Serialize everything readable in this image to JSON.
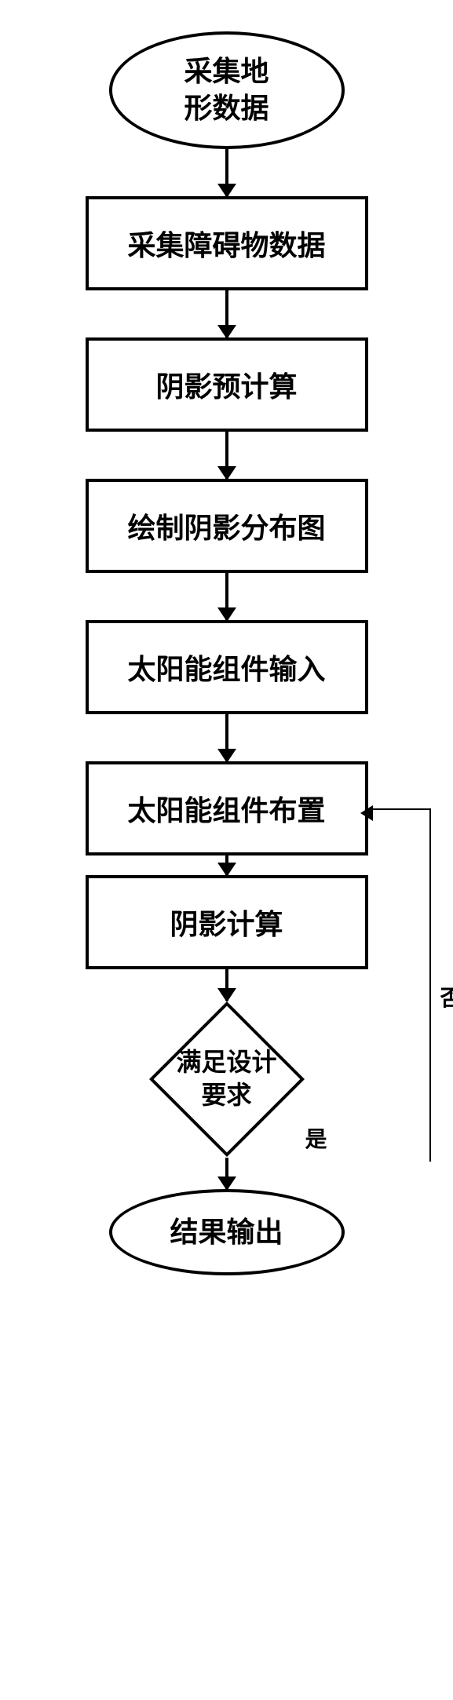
{
  "flowchart": {
    "type": "flowchart",
    "background_color": "#ffffff",
    "border_color": "#000000",
    "border_width": 4,
    "font_weight": "bold",
    "nodes": {
      "start": {
        "shape": "ellipse",
        "label": "采集地\n形数据",
        "fontsize": 36
      },
      "step1": {
        "shape": "rect",
        "label": "采集障碍物数据",
        "fontsize": 36
      },
      "step2": {
        "shape": "rect",
        "label": "阴影预计算",
        "fontsize": 36
      },
      "step3": {
        "shape": "rect",
        "label": "绘制阴影分布图",
        "fontsize": 36
      },
      "step4": {
        "shape": "rect",
        "label": "太阳能组件输入",
        "fontsize": 36
      },
      "step5": {
        "shape": "rect",
        "label": "太阳能组件布置",
        "fontsize": 36
      },
      "step6": {
        "shape": "rect",
        "label": "阴影计算",
        "fontsize": 36
      },
      "decision": {
        "shape": "diamond",
        "label": "满足设计\n要求",
        "fontsize": 32
      },
      "end": {
        "shape": "ellipse",
        "label": "结果输出",
        "fontsize": 36
      }
    },
    "edges": [
      {
        "from": "start",
        "to": "step1"
      },
      {
        "from": "step1",
        "to": "step2"
      },
      {
        "from": "step2",
        "to": "step3"
      },
      {
        "from": "step3",
        "to": "step4"
      },
      {
        "from": "step4",
        "to": "step5"
      },
      {
        "from": "step5",
        "to": "step6"
      },
      {
        "from": "step6",
        "to": "decision"
      },
      {
        "from": "decision",
        "to": "end",
        "label": "是"
      },
      {
        "from": "decision",
        "to": "step5",
        "label": "否",
        "feedback": true
      }
    ],
    "labels": {
      "yes": "是",
      "no": "否"
    }
  }
}
